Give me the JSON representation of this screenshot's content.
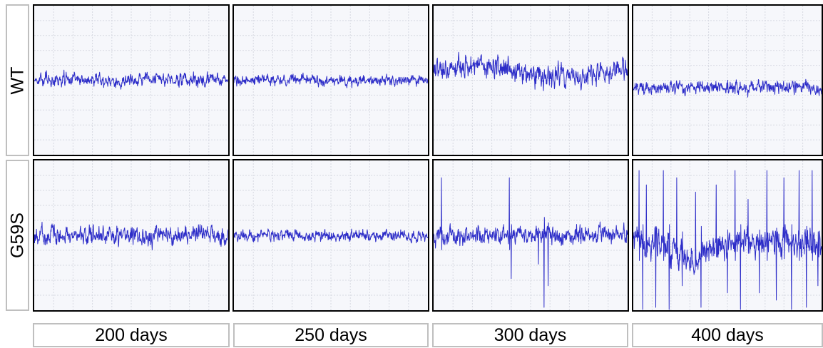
{
  "chart_data": {
    "type": "line",
    "title": "",
    "rows": [
      {
        "key": "wt",
        "label": "WT"
      },
      {
        "key": "g59s",
        "label": "G59S"
      }
    ],
    "columns": [
      {
        "key": "200",
        "label": "200 days"
      },
      {
        "key": "250",
        "label": "250 days"
      },
      {
        "key": "300",
        "label": "300 days"
      },
      {
        "key": "400",
        "label": "400 days"
      }
    ],
    "grid": true,
    "line_color": "#2d2dc8",
    "panels": [
      {
        "row": "wt",
        "column": "200",
        "baseline": 0.0,
        "noise": 0.6,
        "spikes": [],
        "drift": 0
      },
      {
        "row": "wt",
        "column": "250",
        "baseline": 0.0,
        "noise": 0.5,
        "spikes": [],
        "drift": 0
      },
      {
        "row": "wt",
        "column": "300",
        "baseline": 0.6,
        "noise": 1.0,
        "spikes": [],
        "drift": 0.4
      },
      {
        "row": "wt",
        "column": "400",
        "baseline": -0.5,
        "noise": 0.6,
        "spikes": [],
        "drift": 0
      },
      {
        "row": "g59s",
        "column": "200",
        "baseline": 0.0,
        "noise": 0.8,
        "spikes": [],
        "drift": 0
      },
      {
        "row": "g59s",
        "column": "250",
        "baseline": 0.0,
        "noise": 0.5,
        "spikes": [],
        "drift": 0
      },
      {
        "row": "g59s",
        "column": "300",
        "baseline": 0.0,
        "noise": 0.8,
        "spikes": [
          {
            "t": 0.04,
            "amp": -5
          },
          {
            "t": 0.04,
            "amp": 4
          },
          {
            "t": 0.39,
            "amp": 4
          },
          {
            "t": 0.4,
            "amp": -3
          },
          {
            "t": 0.54,
            "amp": -2
          },
          {
            "t": 0.57,
            "amp": -5
          },
          {
            "t": 0.59,
            "amp": -3.5
          }
        ],
        "drift": 0
      },
      {
        "row": "g59s",
        "column": "400",
        "baseline": -0.5,
        "noise": 1.4,
        "spikes": [
          {
            "t": 0.03,
            "amp": 5
          },
          {
            "t": 0.05,
            "amp": -5
          },
          {
            "t": 0.07,
            "amp": 4
          },
          {
            "t": 0.12,
            "amp": -4.5
          },
          {
            "t": 0.16,
            "amp": 5
          },
          {
            "t": 0.19,
            "amp": -5
          },
          {
            "t": 0.23,
            "amp": 4.5
          },
          {
            "t": 0.26,
            "amp": -3
          },
          {
            "t": 0.33,
            "amp": 3.5
          },
          {
            "t": 0.36,
            "amp": -4.5
          },
          {
            "t": 0.44,
            "amp": 4
          },
          {
            "t": 0.5,
            "amp": -3.5
          },
          {
            "t": 0.54,
            "amp": 5
          },
          {
            "t": 0.57,
            "amp": -5
          },
          {
            "t": 0.61,
            "amp": 3
          },
          {
            "t": 0.67,
            "amp": -3.5
          },
          {
            "t": 0.71,
            "amp": 5
          },
          {
            "t": 0.76,
            "amp": -4
          },
          {
            "t": 0.8,
            "amp": 4.5
          },
          {
            "t": 0.84,
            "amp": -5
          },
          {
            "t": 0.88,
            "amp": 5
          },
          {
            "t": 0.92,
            "amp": -4.5
          },
          {
            "t": 0.95,
            "amp": 5
          },
          {
            "t": 0.98,
            "amp": -3
          }
        ],
        "drift": 0,
        "dip": {
          "t": 0.3,
          "depth": -1.2,
          "width": 0.1
        }
      }
    ]
  }
}
